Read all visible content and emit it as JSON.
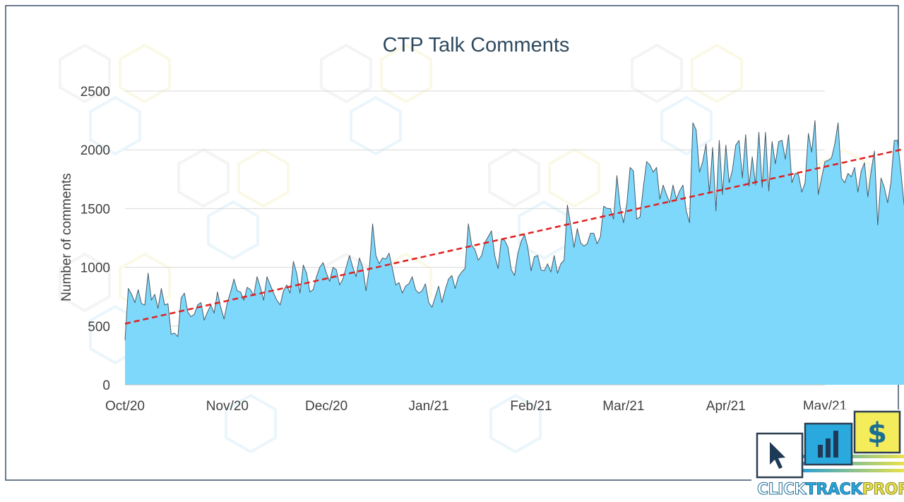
{
  "chart_data": {
    "type": "area",
    "title": "CTP Talk Comments",
    "xlabel": "",
    "ylabel": "Number of comments",
    "ylim": [
      0,
      2500
    ],
    "yticks": [
      0,
      500,
      1000,
      1500,
      2000,
      2500
    ],
    "xticks": [
      "Oct/20",
      "Nov/20",
      "Dec/20",
      "Jan/21",
      "Feb/21",
      "Mar/21",
      "Apr/21",
      "May/21"
    ],
    "x_range": [
      "2020-10-01",
      "2021-05-01"
    ],
    "grid": true,
    "fill_color": "#7ed8fb",
    "line_color": "#4a5a66",
    "trend_color": "#e0201f",
    "series": [
      {
        "date_start": "2020-10-01",
        "interval": "daily",
        "values": [
          380,
          820,
          770,
          700,
          810,
          690,
          680,
          950,
          720,
          770,
          650,
          820,
          680,
          690,
          430,
          440,
          410,
          740,
          780,
          620,
          580,
          600,
          680,
          700,
          550,
          620,
          680,
          610,
          790,
          660,
          560,
          700,
          790,
          900,
          800,
          790,
          720,
          830,
          810,
          760,
          920,
          830,
          720,
          920,
          850,
          780,
          720,
          680,
          800,
          850,
          780,
          1050,
          950,
          780,
          1020,
          950,
          790,
          810,
          920,
          1000,
          1040,
          950,
          880,
          1000,
          980,
          850,
          900,
          1000,
          1100,
          1000,
          920,
          1080,
          1000,
          800,
          990,
          1370,
          1100,
          1030,
          1080,
          1070,
          1120,
          990,
          850,
          870,
          780,
          840,
          860,
          920,
          810,
          780,
          800,
          860,
          700,
          660,
          750,
          840,
          700,
          810,
          900,
          930,
          820,
          920,
          960,
          990,
          1370,
          1190,
          1150,
          1060,
          1100,
          1210,
          1260,
          1310,
          1100,
          990,
          1240,
          1230,
          1170,
          980,
          930,
          1120,
          1220,
          1280,
          1170,
          970,
          1090,
          1100,
          980,
          970,
          1030,
          960,
          1100,
          950,
          1030,
          1060,
          1530,
          1360,
          1170,
          1330,
          1210,
          1180,
          1200,
          1290,
          1290,
          1200,
          1260,
          1520,
          1500,
          1500,
          1410,
          1780,
          1510,
          1380,
          1540,
          1850,
          1820,
          1410,
          1430,
          1680,
          1900,
          1870,
          1810,
          1850,
          1580,
          1700,
          1620,
          1550,
          1700,
          1580,
          1650,
          1700,
          1480,
          1380,
          2230,
          2170,
          1810,
          1900,
          2050,
          1630,
          2020,
          1480,
          2080,
          1620,
          2040,
          1720,
          1830,
          2040,
          2080,
          1760,
          2130,
          1690,
          1940,
          1700,
          2150,
          1680,
          2150,
          1650,
          2070,
          1880,
          2070,
          2080,
          1920,
          2130,
          1720,
          1800,
          1790,
          1640,
          1720,
          2140,
          1980,
          2250,
          1620,
          1760,
          1900,
          1910,
          1930,
          2050,
          2230,
          1760,
          1720,
          1800,
          1770,
          1850,
          1640,
          1820,
          1890,
          1600,
          1820,
          1990,
          1360,
          1760,
          1680,
          1550,
          1720,
          2080,
          2080,
          1820,
          1530,
          1650,
          1760
        ]
      }
    ],
    "trendline": {
      "type": "linear",
      "start": 520,
      "end": 2020
    }
  },
  "logo": {
    "wordmark": [
      "CLICK",
      "TRACK",
      "PROFIT"
    ],
    "glyph_dollar": "$"
  }
}
